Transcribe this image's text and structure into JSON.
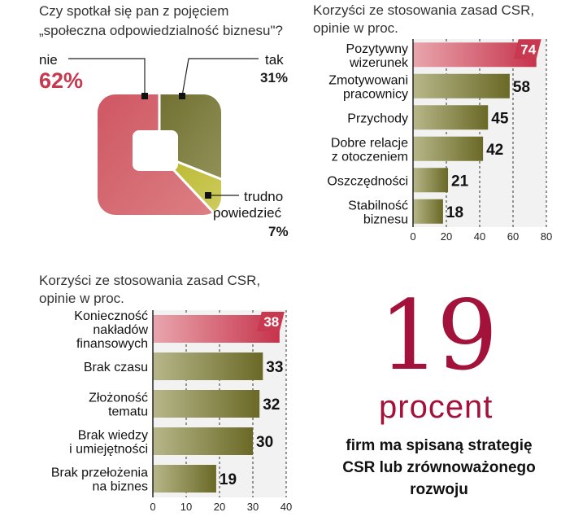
{
  "survey": {
    "question_line1": "Czy spotkał się pan z pojęciem",
    "question_line2": "„społeczna odpowiedzialność biznesu\"?",
    "answers": [
      {
        "label": "nie",
        "value": "62%",
        "color": "#c8384f"
      },
      {
        "label": "tak",
        "value": "31%",
        "color": "#6b6a22"
      },
      {
        "label_line1": "trudno",
        "label_line2": "powiedzieć",
        "value": "7%",
        "color": "#c9c93a"
      }
    ]
  },
  "chart_data": [
    {
      "type": "pie",
      "categories": [
        "nie",
        "tak",
        "trudno powiedzieć"
      ],
      "values": [
        62,
        31,
        7
      ]
    },
    {
      "type": "bar",
      "orientation": "horizontal",
      "title_line1": "Korzyści ze stosowania zasad CSR,",
      "title_line2": "opinie w proc.",
      "categories": [
        [
          "Pozytywny",
          "wizerunek"
        ],
        [
          "Zmotywowani",
          "pracownicy"
        ],
        [
          "Przychody"
        ],
        [
          "Dobre relacje",
          "z otoczeniem"
        ],
        [
          "Oszczędności"
        ],
        [
          "Stabilność",
          "biznesu"
        ]
      ],
      "values": [
        74,
        58,
        45,
        42,
        21,
        18
      ],
      "xlim": [
        0,
        80
      ],
      "xticks": [
        "0",
        "20",
        "40",
        "60",
        "80"
      ],
      "grid": true,
      "highlight_index": 0
    },
    {
      "type": "bar",
      "orientation": "horizontal",
      "title_line1": "Korzyści ze stosowania zasad CSR,",
      "title_line2": "opinie w proc.",
      "categories": [
        [
          "Konieczność",
          "nakładów",
          "finansowych"
        ],
        [
          "Brak czasu"
        ],
        [
          "Złożoność",
          "tematu"
        ],
        [
          "Brak wiedzy",
          "i umiejętności"
        ],
        [
          "Brak przełożenia",
          "na biznes"
        ]
      ],
      "values": [
        38,
        33,
        32,
        30,
        19
      ],
      "xlim": [
        0,
        40
      ],
      "xticks": [
        "0",
        "10",
        "20",
        "30",
        "40"
      ],
      "grid": true,
      "highlight_index": 0
    }
  ],
  "stat": {
    "number": "19",
    "unit": "procent",
    "desc_line1": "firm ma spisaną strategię",
    "desc_line2": "CSR lub zrównoważonego",
    "desc_line3": "rozwoju"
  },
  "colors": {
    "accent": "#a3123a",
    "highlight_bar": "#c8384f",
    "bar": "#6e6d2a",
    "bar_light": "#a8a870"
  }
}
